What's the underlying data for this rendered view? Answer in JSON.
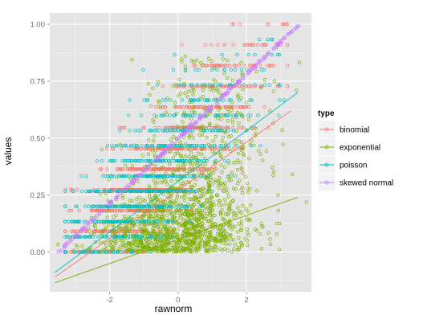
{
  "chart_data": {
    "type": "scatter",
    "xlabel": "rawnorm",
    "ylabel": "values",
    "xlim": [
      -3.75,
      3.9
    ],
    "ylim": [
      -0.175,
      1.05
    ],
    "x_ticks": [
      -2,
      0,
      2
    ],
    "x_tick_labels": [
      "-2",
      "0",
      "2"
    ],
    "y_ticks": [
      0.0,
      0.25,
      0.5,
      0.75,
      1.0
    ],
    "y_tick_labels": [
      "0.00",
      "0.25",
      "0.50",
      "0.75",
      "1.00"
    ],
    "grid": true,
    "panel_background": "#e5e5e5",
    "legend": {
      "title": "type",
      "position": "right",
      "entries": [
        "binomial",
        "exponential",
        "poisson",
        "skewed normal"
      ]
    },
    "series": [
      {
        "name": "binomial",
        "color": "#f8766d",
        "marker": "open circle",
        "discrete_levels": [
          0.0,
          0.0909,
          0.1818,
          0.2727,
          0.3636,
          0.4545,
          0.5455,
          0.6364,
          0.7273,
          0.8182,
          0.9091,
          1.0
        ],
        "x_spread": [
          -3.3,
          3.2
        ],
        "fit_line": {
          "x": [
            -3.6,
            3.3
          ],
          "y": [
            -0.11,
            0.62
          ]
        }
      },
      {
        "name": "exponential",
        "color": "#7cae00",
        "marker": "open circle",
        "distribution": "continuous, dense near 0, long upper tail up to ~0.85",
        "x_spread": [
          -3.4,
          3.3
        ],
        "fit_line": {
          "x": [
            -3.6,
            3.5
          ],
          "y": [
            -0.135,
            0.24
          ]
        }
      },
      {
        "name": "poisson",
        "color": "#00bfc4",
        "marker": "open circle",
        "discrete_levels": [
          0.0,
          0.0667,
          0.1333,
          0.2,
          0.2667,
          0.3333,
          0.4,
          0.4667,
          0.5333,
          0.6,
          0.6667,
          0.7333,
          0.8,
          0.8667,
          0.9333
        ],
        "x_spread": [
          -3.3,
          3.1
        ],
        "fit_line": {
          "x": [
            -3.6,
            3.5
          ],
          "y": [
            -0.09,
            0.7
          ]
        }
      },
      {
        "name": "skewed normal",
        "color": "#c77cff",
        "marker": "open circle",
        "relation": "nearly linear in rawnorm",
        "points_line": {
          "x": [
            -3.5,
            3.55
          ],
          "y": [
            0.0,
            1.0
          ]
        }
      }
    ]
  }
}
